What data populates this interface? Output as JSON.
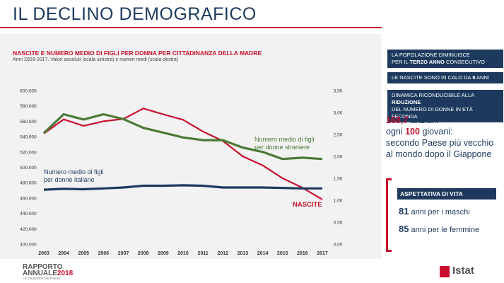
{
  "header": {
    "title": "IL DECLINO DEMOGRAFICO"
  },
  "chart_data": {
    "type": "line",
    "title": "NASCITE E NUMERO MEDIO DI FIGLI PER DONNA PER CITTADINANZA DELLA MADRE",
    "subtitle": "Anni 2003-2017. Valori assoluti  (scala sinistra) e numeri medi  (scala destra)",
    "x": [
      "2003",
      "2004",
      "2005",
      "2006",
      "2007",
      "2008",
      "2009",
      "2010",
      "2011",
      "2012",
      "2013",
      "2014",
      "2015",
      "2016",
      "2017"
    ],
    "y_left": {
      "ylim": [
        400000,
        600000
      ],
      "ticks": [
        "400.000",
        "420.000",
        "440.000",
        "460.000",
        "480.000",
        "500.000",
        "520.000",
        "540.000",
        "560.000",
        "580.000",
        "600.000"
      ]
    },
    "y_right": {
      "ylim": [
        0,
        3.5
      ],
      "ticks": [
        "0,00",
        "0,50",
        "1,00",
        "1,50",
        "2,00",
        "2,50",
        "3,00",
        "3,50"
      ]
    },
    "series": [
      {
        "name": "NASCITE",
        "axis": "left",
        "color": "#c8102e",
        "values": [
          544000,
          562500,
          554000,
          560000,
          563000,
          576700,
          569000,
          561900,
          546600,
          534300,
          514300,
          502600,
          485800,
          473400,
          458200
        ]
      },
      {
        "name": "Numero medio di figli per donne straniere",
        "axis": "right",
        "color": "#4a7a35",
        "values": [
          2.53,
          2.96,
          2.84,
          2.96,
          2.85,
          2.65,
          2.54,
          2.43,
          2.37,
          2.37,
          2.2,
          2.1,
          1.94,
          1.97,
          1.94
        ]
      },
      {
        "name": "Numero medio di figli per donne italiane",
        "axis": "right",
        "color": "#1d3a5e",
        "values": [
          1.24,
          1.26,
          1.25,
          1.27,
          1.29,
          1.33,
          1.33,
          1.34,
          1.33,
          1.29,
          1.29,
          1.29,
          1.28,
          1.27,
          1.27
        ]
      }
    ],
    "labels": {
      "nascite": "NASCITE",
      "straniere_1": "Numero medio di figli",
      "straniere_2": "per donne straniere",
      "italiane_1": "Numero medio di figli",
      "italiane_2": "per donne italiane"
    }
  },
  "sidebar": {
    "box1_pre": "LA POPOLAZIONE DIMINUISCE",
    "box1_mid": "PER IL ",
    "box1_bold": "TERZO ANNO",
    "box1_post": " CONSECUTIVO",
    "box2_pre": "LE NASCITE SONO IN CALO DA ",
    "box2_bold": "9",
    "box2_post": " ANNI",
    "box3_pre": "DINAMICA RICONDUCIBILE ALLA ",
    "box3_bold": "RIDUZIONE",
    "box3_post": "DEL NUMERO DI DONNE IN ETÀ FECONDA",
    "stat_num1": "168,7",
    "stat_txt1": " anziani",
    "stat_txt2": "ogni ",
    "stat_num2": "100",
    "stat_txt3": " giovani:",
    "stat_txt4": "secondo Paese più vecchio",
    "stat_txt5": "al mondo dopo il Giappone",
    "life_title": "ASPETTATIVA DI VITA",
    "life_m_num": "81",
    "life_m_txt": " anni per i maschi",
    "life_f_num": "85",
    "life_f_txt": " anni per le femmine"
  },
  "footer": {
    "logo_1": "RAPPORTO",
    "logo_2": "ANNUALE",
    "logo_year": "2018",
    "logo_sub": "La situazione del Paese",
    "brand": "Istat"
  }
}
